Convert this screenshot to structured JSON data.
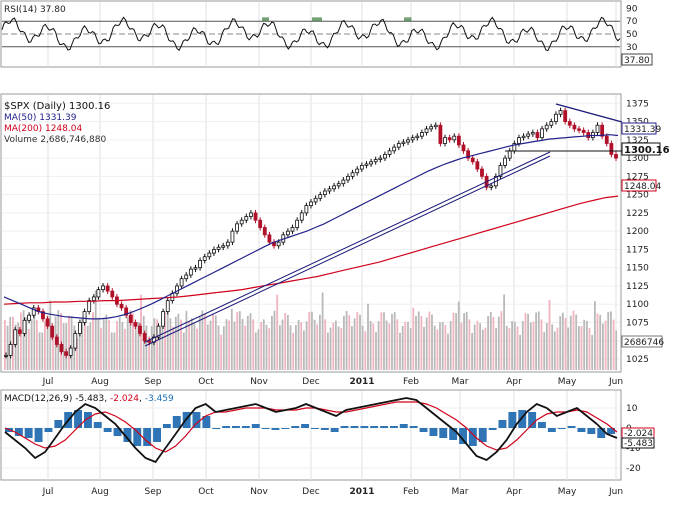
{
  "chart_data": {
    "type": "candlestick",
    "symbol": "$SPX (Daily)",
    "last_price": "1300.16",
    "months": [
      "Jul",
      "Aug",
      "Sep",
      "Oct",
      "Nov",
      "Dec",
      "2011",
      "Feb",
      "Mar",
      "Apr",
      "May",
      "Jun"
    ],
    "rsi": {
      "label": "RSI(14) 37.80",
      "value_tag": "37.80",
      "ticks": [
        "90",
        "70",
        "50",
        "30",
        "10"
      ],
      "ylim": [
        0,
        100
      ],
      "guides": [
        70,
        50,
        30
      ]
    },
    "price": {
      "ticks": [
        "1375",
        "1350",
        "1325",
        "1300",
        "1275",
        "1250",
        "1225",
        "1200",
        "1175",
        "1150",
        "1125",
        "1100",
        "1075",
        "1050",
        "1025"
      ],
      "ylim": [
        1010,
        1385
      ],
      "close_tag": "1300.16",
      "ma50_tag": "1331.39",
      "ma200_tag": "1248.04",
      "volume_tag": "2686746",
      "legend": [
        {
          "text": "$SPX (Daily) 1300.16",
          "color": "#111111"
        },
        {
          "text": "MA(50) 1331.39",
          "color": "#22228a"
        },
        {
          "text": "MA(200) 1248.04",
          "color": "#d0021b"
        },
        {
          "text": "Volume 2,686,746,880",
          "color": "#333333"
        }
      ],
      "closes": [
        1030,
        1045,
        1065,
        1060,
        1078,
        1085,
        1095,
        1090,
        1080,
        1070,
        1055,
        1045,
        1035,
        1030,
        1040,
        1060,
        1075,
        1090,
        1105,
        1110,
        1120,
        1125,
        1118,
        1110,
        1100,
        1095,
        1085,
        1075,
        1070,
        1060,
        1050,
        1048,
        1055,
        1070,
        1090,
        1105,
        1115,
        1125,
        1135,
        1140,
        1148,
        1150,
        1160,
        1165,
        1170,
        1175,
        1178,
        1180,
        1185,
        1200,
        1210,
        1215,
        1220,
        1225,
        1215,
        1205,
        1195,
        1185,
        1180,
        1185,
        1195,
        1200,
        1205,
        1215,
        1225,
        1235,
        1240,
        1245,
        1250,
        1255,
        1258,
        1262,
        1265,
        1270,
        1275,
        1280,
        1285,
        1290,
        1292,
        1295,
        1298,
        1300,
        1305,
        1310,
        1315,
        1320,
        1322,
        1325,
        1328,
        1330,
        1335,
        1340,
        1343,
        1345,
        1320,
        1328,
        1325,
        1330,
        1318,
        1310,
        1300,
        1295,
        1285,
        1275,
        1260,
        1262,
        1275,
        1290,
        1300,
        1310,
        1320,
        1328,
        1330,
        1333,
        1335,
        1328,
        1340,
        1345,
        1350,
        1360,
        1365,
        1350,
        1345,
        1340,
        1338,
        1335,
        1328,
        1335,
        1345,
        1330,
        1320,
        1305,
        1300
      ],
      "ma50": [
        1110,
        1105,
        1100,
        1095,
        1090,
        1087,
        1085,
        1083,
        1082,
        1081,
        1080,
        1080,
        1081,
        1083,
        1086,
        1090,
        1095,
        1100,
        1106,
        1112,
        1118,
        1124,
        1130,
        1136,
        1142,
        1148,
        1154,
        1160,
        1166,
        1172,
        1178,
        1184,
        1188,
        1192,
        1196,
        1200,
        1205,
        1210,
        1216,
        1222,
        1228,
        1234,
        1240,
        1246,
        1252,
        1258,
        1264,
        1270,
        1276,
        1282,
        1287,
        1292,
        1296,
        1300,
        1303,
        1306,
        1309,
        1312,
        1315,
        1318,
        1320,
        1322,
        1324,
        1326,
        1327,
        1328,
        1329,
        1330,
        1331,
        1331,
        1332,
        1331
      ],
      "ma200": [
        1100,
        1101,
        1102,
        1102,
        1103,
        1103,
        1104,
        1104,
        1105,
        1105,
        1106,
        1107,
        1108,
        1109,
        1110,
        1112,
        1114,
        1116,
        1118,
        1120,
        1123,
        1126,
        1129,
        1132,
        1135,
        1138,
        1142,
        1146,
        1150,
        1154,
        1158,
        1163,
        1168,
        1173,
        1178,
        1183,
        1188,
        1193,
        1198,
        1203,
        1208,
        1213,
        1218,
        1223,
        1228,
        1233,
        1238,
        1242,
        1246,
        1248
      ]
    },
    "macd": {
      "label": "MACD(12,26,9)",
      "macd_value": "-5.483",
      "signal_value": "-2.024",
      "hist_value": "-3.459",
      "ticks": [
        "10",
        "0",
        "-10",
        "-20"
      ],
      "ylim": [
        -25,
        18
      ],
      "tag_signal": "-2.024",
      "tag_macd": "-5.483",
      "macd_line": [
        -2,
        -6,
        -10,
        -15,
        -12,
        -5,
        2,
        8,
        12,
        10,
        6,
        2,
        -4,
        -10,
        -15,
        -17,
        -10,
        -3,
        4,
        10,
        12,
        8,
        9,
        10,
        11,
        12,
        10,
        8,
        9,
        10,
        12,
        10,
        8,
        6,
        9,
        10,
        11,
        12,
        13,
        14,
        15,
        14,
        10,
        6,
        2,
        -2,
        -8,
        -14,
        -16,
        -12,
        -6,
        2,
        8,
        12,
        10,
        6,
        8,
        10,
        6,
        2,
        -3,
        -5
      ],
      "signal_line": [
        0,
        -2,
        -5,
        -8,
        -10,
        -9,
        -6,
        -1,
        4,
        7,
        8,
        6,
        3,
        -1,
        -6,
        -10,
        -12,
        -9,
        -4,
        2,
        6,
        8,
        8,
        9,
        10,
        10,
        10,
        9,
        9,
        9,
        10,
        10,
        9,
        8,
        8,
        9,
        10,
        11,
        12,
        13,
        13,
        13,
        12,
        10,
        7,
        4,
        0,
        -5,
        -9,
        -11,
        -10,
        -6,
        -1,
        4,
        7,
        8,
        8,
        9,
        8,
        5,
        2,
        -2
      ],
      "histogram": [
        -2,
        -4,
        -5,
        -7,
        -2,
        4,
        8,
        9,
        8,
        3,
        -2,
        -4,
        -7,
        -9,
        -9,
        -7,
        2,
        6,
        8,
        8,
        6,
        0,
        1,
        1,
        1,
        2,
        0,
        -1,
        0,
        1,
        2,
        0,
        -1,
        -2,
        1,
        1,
        1,
        1,
        1,
        1,
        2,
        1,
        -2,
        -4,
        -5,
        -6,
        -8,
        -9,
        -7,
        -1,
        4,
        8,
        9,
        8,
        3,
        -2,
        0,
        1,
        -2,
        -3,
        -5,
        -3
      ]
    }
  }
}
